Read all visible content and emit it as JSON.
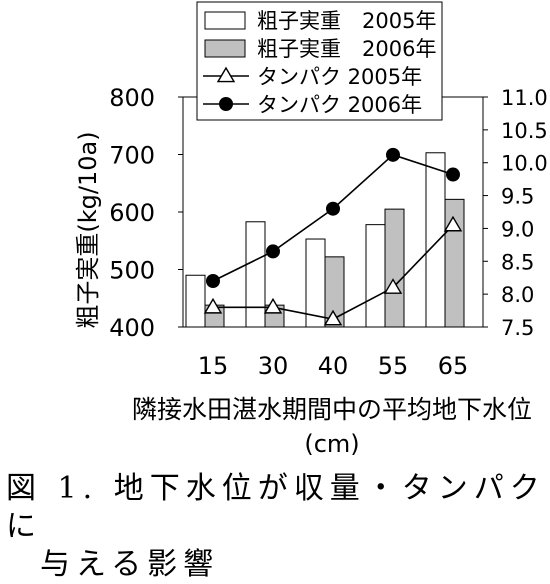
{
  "chart_data": {
    "type": "bar",
    "categories": [
      "15",
      "30",
      "40",
      "55",
      "65"
    ],
    "series": [
      {
        "name": "粗子実重　2005年",
        "kind": "bar",
        "axis": "left",
        "fill": "#ffffff",
        "values": [
          490,
          583,
          553,
          578,
          703
        ]
      },
      {
        "name": "粗子実重　2006年",
        "kind": "bar",
        "axis": "left",
        "fill": "#c0c0c0",
        "values": [
          438,
          438,
          522,
          605,
          622
        ]
      },
      {
        "name": "タンパク 2005年",
        "kind": "line",
        "marker": "triangle-open",
        "axis": "right",
        "values": [
          7.8,
          7.8,
          7.62,
          8.1,
          9.05
        ]
      },
      {
        "name": "タンパク 2006年",
        "kind": "line",
        "marker": "circle-filled",
        "axis": "right",
        "values": [
          8.2,
          8.65,
          9.3,
          10.12,
          9.82
        ]
      }
    ],
    "ylabel": "粗子実重(kg/10a)",
    "y2label": "",
    "xlabel_line1": "隣接水田湛水期間中の平均地下水位",
    "xlabel_line2": "(cm)",
    "ylim": [
      400,
      800
    ],
    "yticks": [
      "400",
      "500",
      "600",
      "700",
      "800"
    ],
    "y2lim": [
      7.5,
      11.0
    ],
    "y2ticks": [
      "7.5",
      "8.0",
      "8.5",
      "9.0",
      "9.5",
      "10.0",
      "10.5",
      "11.0"
    ],
    "legend_placement": "top"
  },
  "caption": {
    "line1": "図 1. 地下水位が収量・タンパクに",
    "line2": "与える影響"
  }
}
